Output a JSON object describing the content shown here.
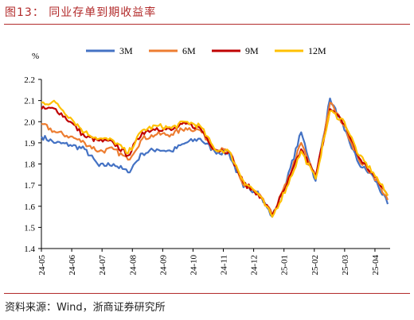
{
  "figure": {
    "title": "图13：  同业存单到期收益率",
    "source": "资料来源：Wind，浙商证券研究所"
  },
  "colors": {
    "accent": "#b22a2a",
    "3M": "#4472c4",
    "6M": "#ed7d31",
    "9M": "#c00000",
    "12M": "#ffc000"
  },
  "chart_data": {
    "type": "line",
    "title": "",
    "xlabel": "",
    "ylabel": "%",
    "ylim": [
      1.4,
      2.2
    ],
    "yticks": [
      "1.4",
      "1.5",
      "1.6",
      "1.7",
      "1.8",
      "1.9",
      "2.0",
      "2.1",
      "2.2"
    ],
    "xticks": [
      "24-05",
      "24-06",
      "24-07",
      "24-08",
      "24-09",
      "24-10",
      "24-11",
      "24-12",
      "25-01",
      "25-02",
      "25-03",
      "25-04"
    ],
    "grid": false,
    "legend_position": "top",
    "x": [
      "24-05",
      "24-05b",
      "24-06",
      "24-06b",
      "24-07",
      "24-07b",
      "24-08",
      "24-08b",
      "24-09",
      "24-09b",
      "24-10",
      "24-10b",
      "24-11",
      "24-11b",
      "24-12",
      "24-12b",
      "25-01",
      "25-01b",
      "25-02",
      "25-02b",
      "25-03",
      "25-03b",
      "25-04",
      "25-04b",
      "25-04c"
    ],
    "series": [
      {
        "name": "3M",
        "color": "#4472c4",
        "values": [
          1.93,
          1.9,
          1.89,
          1.87,
          1.79,
          1.8,
          1.76,
          1.85,
          1.87,
          1.86,
          1.9,
          1.92,
          1.86,
          1.85,
          1.69,
          1.67,
          1.55,
          1.72,
          1.95,
          1.72,
          2.11,
          1.96,
          1.8,
          1.74,
          1.61
        ]
      },
      {
        "name": "6M",
        "color": "#ed7d31",
        "values": [
          1.99,
          1.95,
          1.93,
          1.9,
          1.86,
          1.87,
          1.82,
          1.92,
          1.94,
          1.94,
          1.97,
          1.96,
          1.87,
          1.86,
          1.7,
          1.66,
          1.56,
          1.71,
          1.9,
          1.73,
          2.09,
          1.98,
          1.82,
          1.75,
          1.63
        ]
      },
      {
        "name": "9M",
        "color": "#c00000",
        "values": [
          2.06,
          2.06,
          2.0,
          1.93,
          1.91,
          1.9,
          1.84,
          1.95,
          1.97,
          1.96,
          1.99,
          1.97,
          1.87,
          1.86,
          1.71,
          1.66,
          1.56,
          1.7,
          1.87,
          1.74,
          2.06,
          1.99,
          1.83,
          1.75,
          1.65
        ]
      },
      {
        "name": "12M",
        "color": "#ffc000",
        "values": [
          2.09,
          2.09,
          2.02,
          1.95,
          1.92,
          1.91,
          1.85,
          1.96,
          1.98,
          1.97,
          2.0,
          1.98,
          1.87,
          1.86,
          1.72,
          1.66,
          1.55,
          1.69,
          1.86,
          1.73,
          2.05,
          2.0,
          1.84,
          1.76,
          1.65
        ]
      }
    ]
  }
}
